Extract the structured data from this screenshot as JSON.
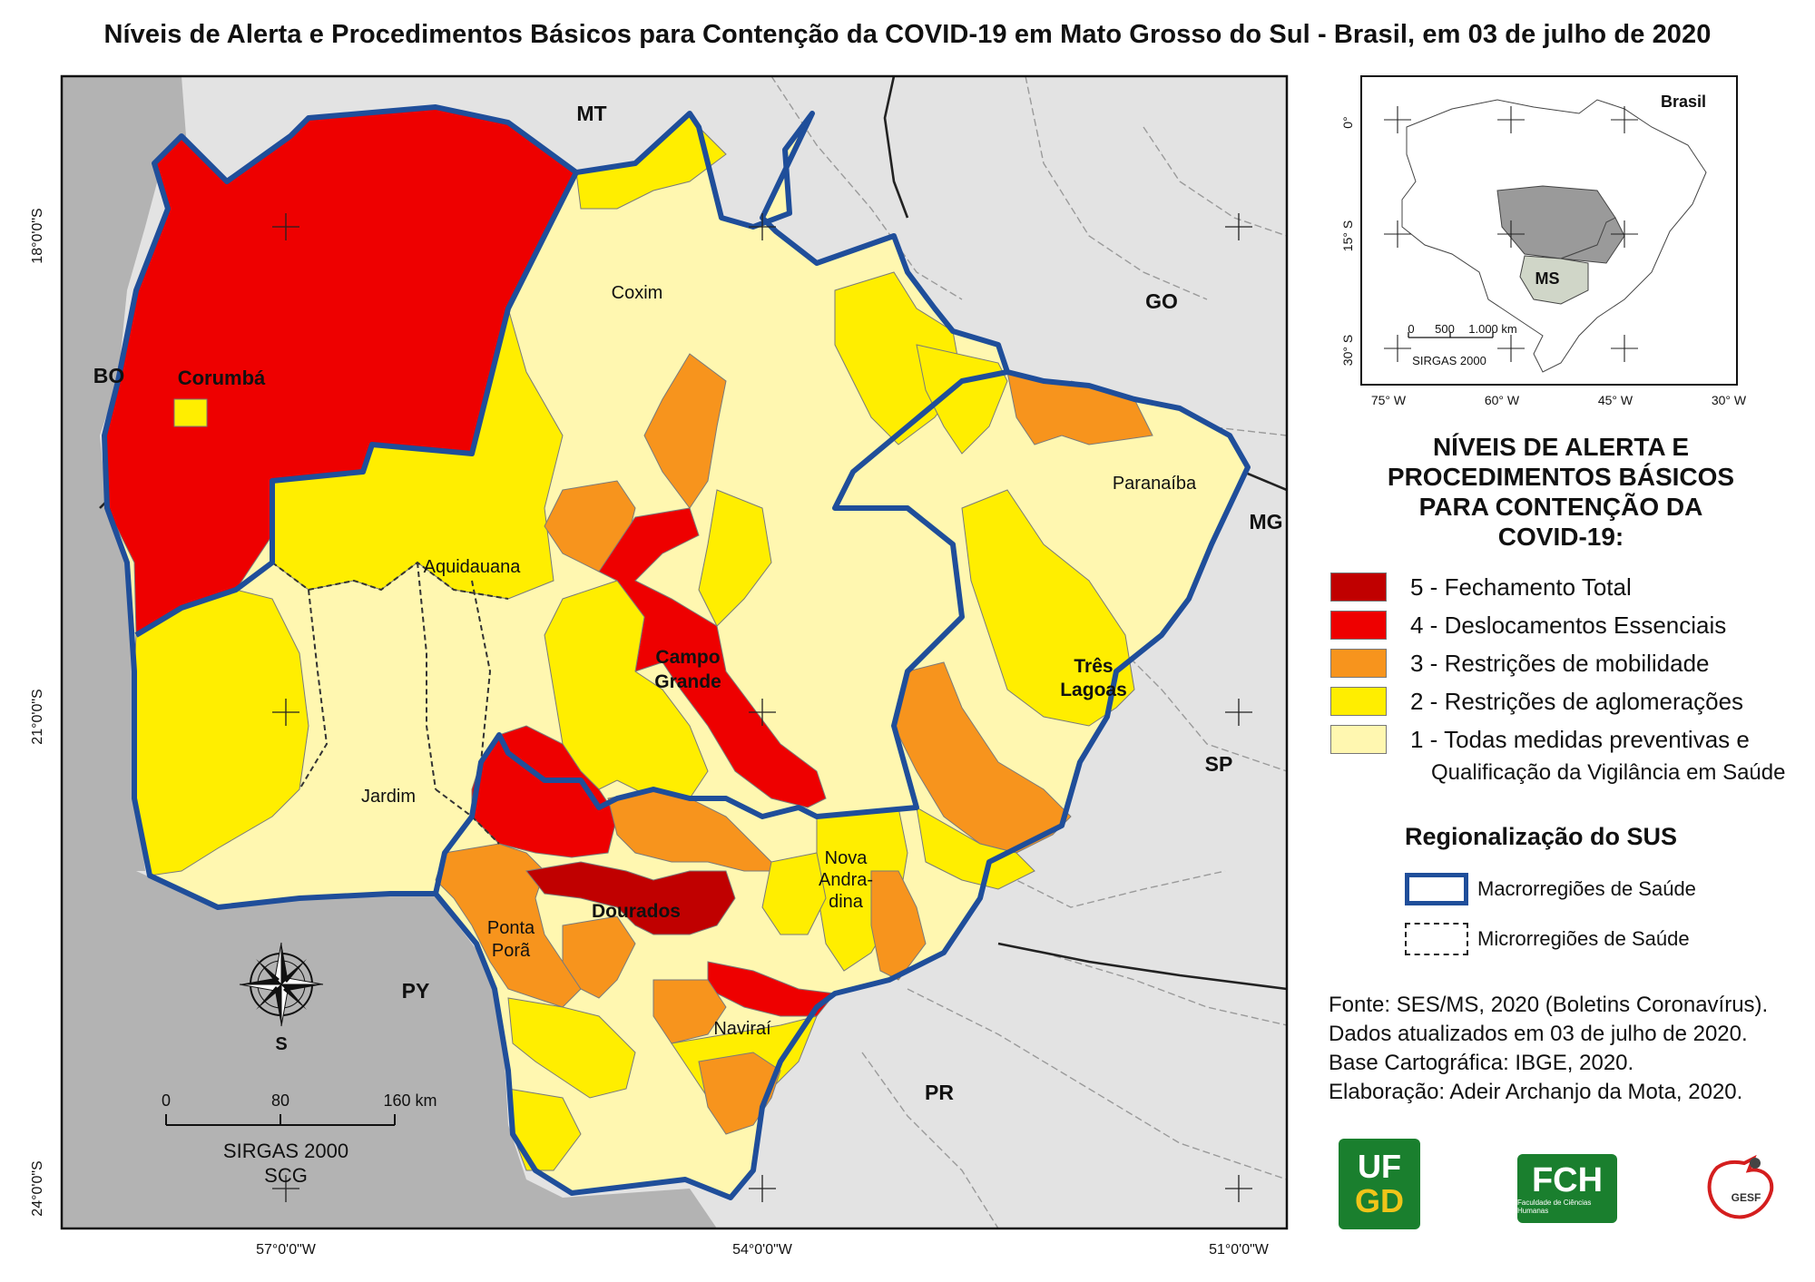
{
  "title": "Níveis de Alerta e Procedimentos Básicos para Contenção da COVID-19 em Mato Grosso do Sul - Brasil, em 03 de julho de 2020",
  "map": {
    "neighbors": {
      "mt": "MT",
      "go": "GO",
      "mg": "MG",
      "sp": "SP",
      "pr": "PR",
      "py": "PY",
      "bo": "BO"
    },
    "cities": {
      "corumba": "Corumbá",
      "coxim": "Coxim",
      "aquidauana": "Aquidauana",
      "campo_grande_1": "Campo",
      "campo_grande_2": "Grande",
      "jardim": "Jardim",
      "dourados": "Dourados",
      "ponta_pora_1": "Ponta",
      "ponta_pora_2": "Porã",
      "nova_andradina_1": "Nova",
      "nova_andradina_2": "Andra-",
      "nova_andradina_3": "dina",
      "navirai": "Naviraí",
      "tres_lagoas_1": "Três",
      "tres_lagoas_2": "Lagoas",
      "paranaiba": "Paranaíba"
    },
    "lat_labels": [
      "18°0'0\"S",
      "21°0'0\"S",
      "24°0'0\"S"
    ],
    "lon_labels": [
      "57°0'0\"W",
      "54°0'0\"W",
      "51°0'0\"W"
    ],
    "north_label": "S",
    "scale": {
      "ticks": [
        "0",
        "80",
        "160 km"
      ],
      "line1": "SIRGAS 2000",
      "line2": "SCG"
    }
  },
  "inset": {
    "label": "Brasil",
    "ms_label": "MS",
    "lat_labels": [
      "0°",
      "15° S",
      "30° S"
    ],
    "lon_labels": [
      "75° W",
      "60° W",
      "45° W",
      "30° W"
    ],
    "scale_ticks": [
      "0",
      "500",
      "1.000 km"
    ],
    "scale_caption": "SIRGAS 2000"
  },
  "legend": {
    "title_lines": [
      "NÍVEIS DE ALERTA E",
      "PROCEDIMENTOS BÁSICOS",
      "PARA CONTENÇÃO DA",
      "COVID-19:"
    ],
    "items": [
      {
        "label": "5 - Fechamento Total",
        "color": "#c00000"
      },
      {
        "label": "4 - Deslocamentos Essenciais",
        "color": "#ee0000"
      },
      {
        "label": "3 - Restrições de mobilidade",
        "color": "#f7941d"
      },
      {
        "label": "2 - Restrições de aglomerações",
        "color": "#ffee00"
      },
      {
        "label": "1 - Todas medidas preventivas e",
        "color": "#fff7b0"
      }
    ],
    "item5_continuation": "Qualificação da Vigilância em Saúde"
  },
  "sus": {
    "title": "Regionalização do SUS",
    "macro_label": "Macrorregiões de Saúde",
    "micro_label": "Microrregiões de Saúde",
    "macro_color": "#1f4e9a"
  },
  "credits": [
    "Fonte: SES/MS, 2020 (Boletins Coronavírus).",
    "Dados atualizados em 03 de julho de 2020.",
    "Base Cartográfica: IBGE, 2020.",
    "Elaboração: Adeir Archanjo da Mota, 2020."
  ],
  "logos": {
    "ufgd_1": "UF",
    "ufgd_2": "GD",
    "fch": "FCH",
    "fch_sub": "Faculdade de Ciências Humanas",
    "gesf": "GESF"
  }
}
